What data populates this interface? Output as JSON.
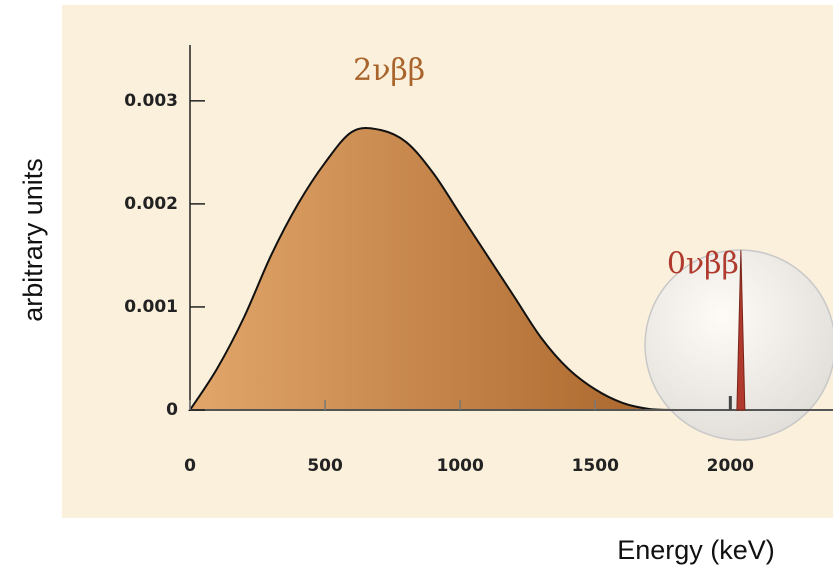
{
  "chart_data": {
    "type": "area",
    "xlabel": "Energy (keV)",
    "ylabel": "arbitrary units",
    "xlim": [
      0,
      2380
    ],
    "ylim": [
      0,
      0.0036
    ],
    "xticks": [
      0,
      500,
      1000,
      1500,
      2000
    ],
    "yticks": [
      0,
      0.001,
      0.002,
      0.003
    ],
    "series": [
      {
        "name": "2νββ",
        "color": "#a8642a",
        "x": [
          0,
          100,
          200,
          300,
          400,
          500,
          600,
          700,
          800,
          900,
          1000,
          1100,
          1200,
          1300,
          1400,
          1500,
          1600,
          1700,
          1800
        ],
        "values": [
          0,
          0.0004,
          0.0009,
          0.0015,
          0.002,
          0.0024,
          0.0027,
          0.00272,
          0.0026,
          0.0023,
          0.0019,
          0.0015,
          0.0011,
          0.0007,
          0.0004,
          0.0002,
          7e-05,
          1e-05,
          0
        ]
      },
      {
        "name": "0νββ",
        "color": "#b03a2e",
        "x": [
          2039
        ],
        "values": [
          0.00155
        ]
      }
    ]
  }
}
